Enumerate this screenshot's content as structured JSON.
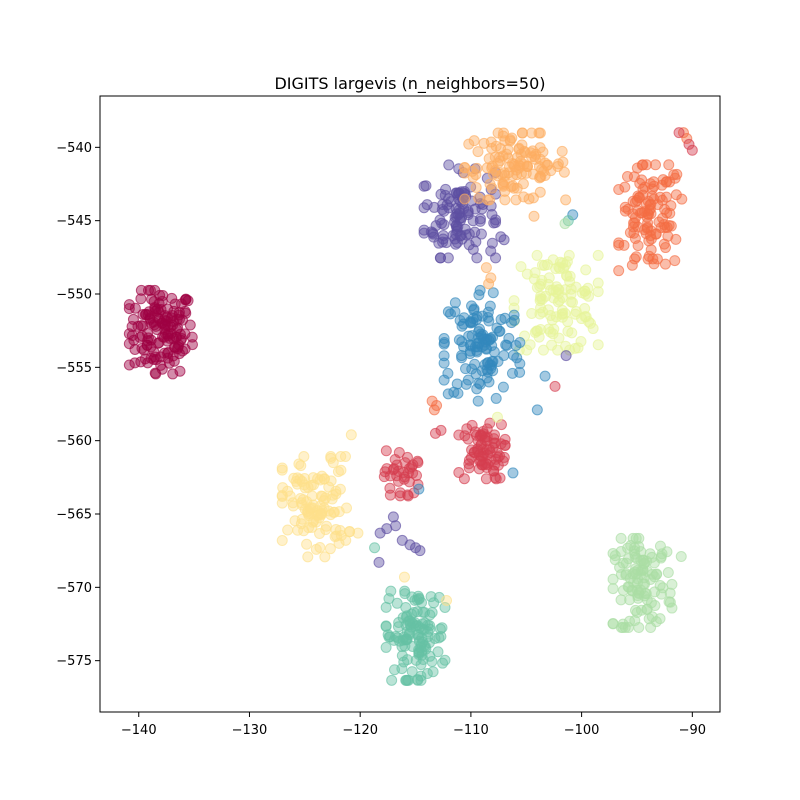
{
  "chart_data": {
    "type": "scatter",
    "title": "DIGITS largevis (n_neighbors=50)",
    "xlabel": "",
    "ylabel": "",
    "xlim": [
      -143.5,
      -87.5
    ],
    "ylim": [
      -578.5,
      -536.5
    ],
    "xticks": [
      -140,
      -130,
      -120,
      -110,
      -100,
      -90
    ],
    "yticks": [
      -540,
      -545,
      -550,
      -555,
      -560,
      -565,
      -570,
      -575
    ],
    "grid": false,
    "legend": "none",
    "marker_alpha": 0.45,
    "clusters": [
      {
        "color": "#9e0142",
        "cx": -138.0,
        "cy": -552.6,
        "sx": 1.5,
        "sy": 1.5,
        "n": 140
      },
      {
        "color": "#5e4fa2",
        "cx": -111.0,
        "cy": -544.5,
        "sx": 1.7,
        "sy": 1.6,
        "n": 110
      },
      {
        "color": "#fdae61",
        "cx": -106.0,
        "cy": -541.3,
        "sx": 2.4,
        "sy": 1.2,
        "n": 120
      },
      {
        "color": "#f46d43",
        "cx": -93.8,
        "cy": -544.8,
        "sx": 1.5,
        "sy": 1.9,
        "n": 110
      },
      {
        "color": "#e6f598",
        "cx": -102.3,
        "cy": -550.6,
        "sx": 2.0,
        "sy": 1.7,
        "n": 110
      },
      {
        "color": "#3288bd",
        "cx": -109.0,
        "cy": -553.5,
        "sx": 1.8,
        "sy": 2.0,
        "n": 120
      },
      {
        "color": "#d53e4f",
        "cx": -109.0,
        "cy": -560.7,
        "sx": 1.1,
        "sy": 1.0,
        "n": 75
      },
      {
        "color": "#d53e4f",
        "cx": -116.3,
        "cy": -562.4,
        "sx": 0.8,
        "sy": 0.9,
        "n": 35
      },
      {
        "color": "#fee08b",
        "cx": -124.0,
        "cy": -564.5,
        "sx": 1.6,
        "sy": 1.8,
        "n": 110
      },
      {
        "color": "#66c2a5",
        "cx": -115.0,
        "cy": -573.3,
        "sx": 1.4,
        "sy": 1.6,
        "n": 120
      },
      {
        "color": "#abdda4",
        "cx": -94.5,
        "cy": -569.7,
        "sx": 1.4,
        "sy": 1.6,
        "n": 110
      }
    ],
    "extra_points": [
      {
        "color": "#f46d43",
        "x": -90.8,
        "y": -539.0
      },
      {
        "color": "#f46d43",
        "x": -90.5,
        "y": -539.4
      },
      {
        "color": "#d53e4f",
        "x": -90.3,
        "y": -539.8
      },
      {
        "color": "#d53e4f",
        "x": -90.0,
        "y": -540.2
      },
      {
        "color": "#d53e4f",
        "x": -91.2,
        "y": -539.0
      },
      {
        "color": "#5e4fa2",
        "x": -112.0,
        "y": -541.2
      },
      {
        "color": "#5e4fa2",
        "x": -107.3,
        "y": -546.1
      },
      {
        "color": "#5e4fa2",
        "x": -107.0,
        "y": -546.3
      },
      {
        "color": "#3288bd",
        "x": -100.8,
        "y": -544.6
      },
      {
        "color": "#66c2a5",
        "x": -101.2,
        "y": -545.0
      },
      {
        "color": "#abdda4",
        "x": -101.5,
        "y": -545.2
      },
      {
        "color": "#fdae61",
        "x": -104.3,
        "y": -544.7
      },
      {
        "color": "#fdae61",
        "x": -108.6,
        "y": -548.2
      },
      {
        "color": "#fdae61",
        "x": -108.2,
        "y": -548.9
      },
      {
        "color": "#fdae61",
        "x": -108.4,
        "y": -549.3
      },
      {
        "color": "#5e4fa2",
        "x": -101.4,
        "y": -554.2
      },
      {
        "color": "#3288bd",
        "x": -103.3,
        "y": -555.6
      },
      {
        "color": "#d53e4f",
        "x": -102.4,
        "y": -556.3
      },
      {
        "color": "#3288bd",
        "x": -104.0,
        "y": -557.9
      },
      {
        "color": "#f46d43",
        "x": -113.5,
        "y": -557.3
      },
      {
        "color": "#f46d43",
        "x": -113.1,
        "y": -557.6
      },
      {
        "color": "#f46d43",
        "x": -113.3,
        "y": -557.9
      },
      {
        "color": "#e6f598",
        "x": -99.2,
        "y": -552.0
      },
      {
        "color": "#e6f598",
        "x": -107.6,
        "y": -558.4
      },
      {
        "color": "#fee08b",
        "x": -120.8,
        "y": -559.6
      },
      {
        "color": "#d53e4f",
        "x": -113.2,
        "y": -559.5
      },
      {
        "color": "#d53e4f",
        "x": -112.7,
        "y": -559.3
      },
      {
        "color": "#3288bd",
        "x": -106.2,
        "y": -562.2
      },
      {
        "color": "#3288bd",
        "x": -114.7,
        "y": -563.3
      },
      {
        "color": "#5e4fa2",
        "x": -118.2,
        "y": -566.3
      },
      {
        "color": "#5e4fa2",
        "x": -117.6,
        "y": -566.0
      },
      {
        "color": "#5e4fa2",
        "x": -116.8,
        "y": -565.8
      },
      {
        "color": "#5e4fa2",
        "x": -117.0,
        "y": -565.2
      },
      {
        "color": "#5e4fa2",
        "x": -116.2,
        "y": -566.8
      },
      {
        "color": "#5e4fa2",
        "x": -115.5,
        "y": -567.1
      },
      {
        "color": "#5e4fa2",
        "x": -115.0,
        "y": -567.3
      },
      {
        "color": "#5e4fa2",
        "x": -114.6,
        "y": -567.5
      },
      {
        "color": "#66c2a5",
        "x": -118.7,
        "y": -567.3
      },
      {
        "color": "#5e4fa2",
        "x": -118.3,
        "y": -568.3
      },
      {
        "color": "#fee08b",
        "x": -120.2,
        "y": -566.3
      },
      {
        "color": "#fee08b",
        "x": -127.0,
        "y": -563.2
      },
      {
        "color": "#fee08b",
        "x": -116.0,
        "y": -569.3
      },
      {
        "color": "#fee08b",
        "x": -112.2,
        "y": -570.9
      },
      {
        "color": "#abdda4",
        "x": -92.8,
        "y": -567.9
      },
      {
        "color": "#abdda4",
        "x": -91.0,
        "y": -567.9
      }
    ]
  }
}
